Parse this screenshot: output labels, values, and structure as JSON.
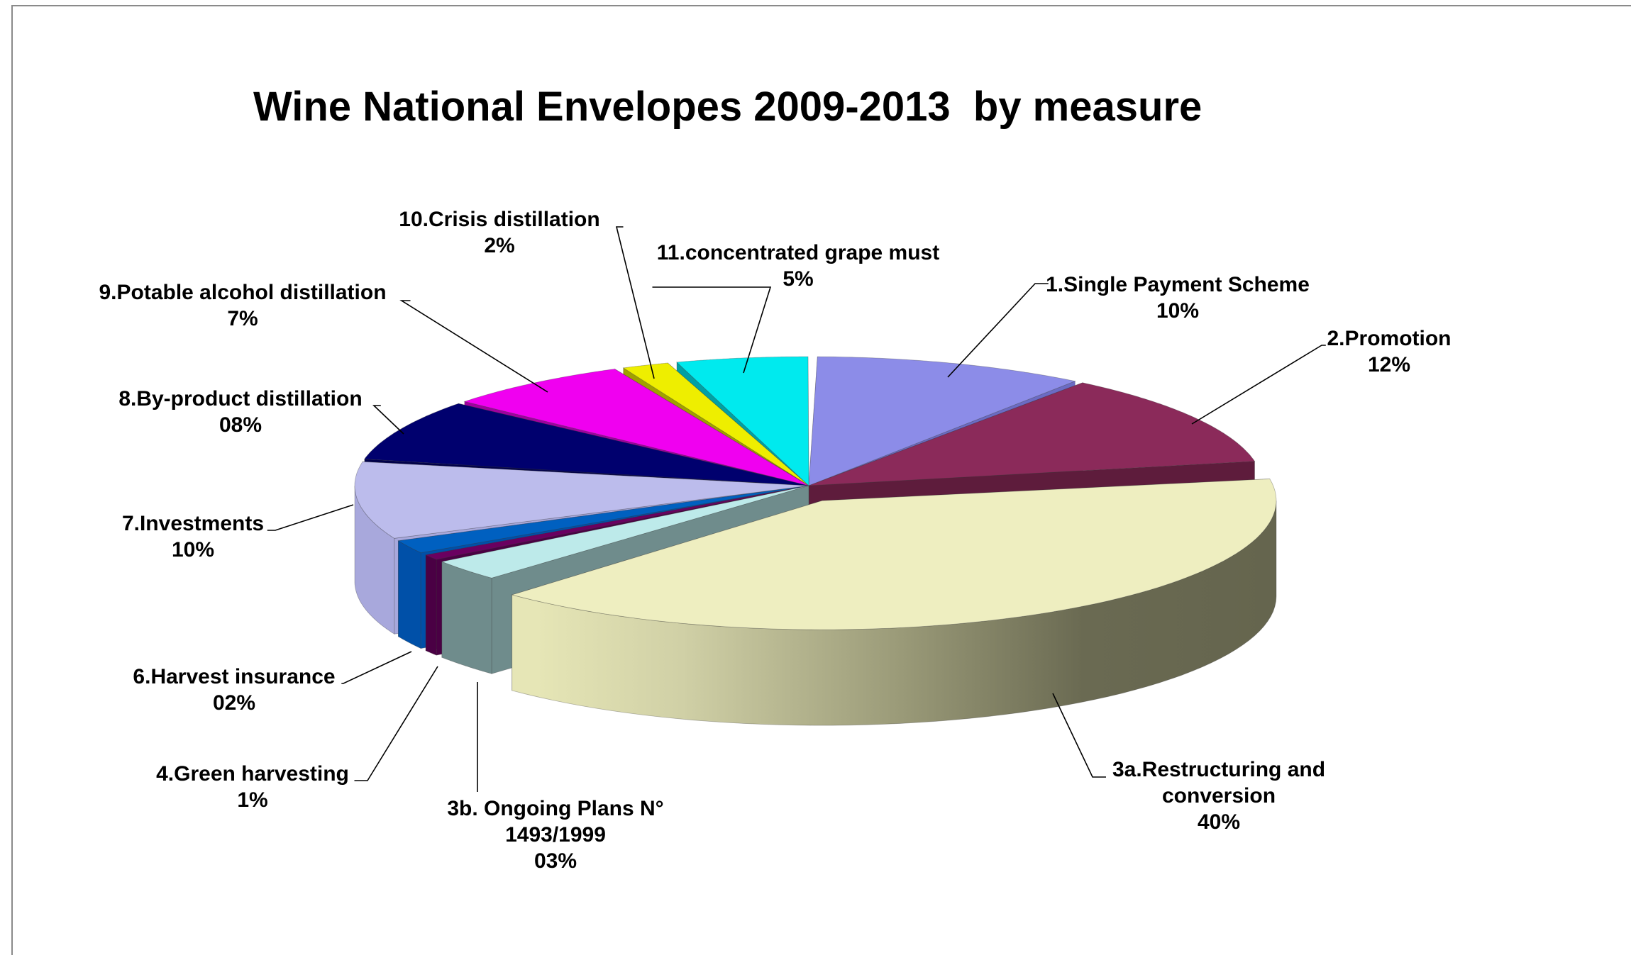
{
  "chart_data": {
    "type": "pie",
    "style": "3d-exploded",
    "title": "Wine National Envelopes 2009-2013  by measure",
    "legend": "none",
    "slices": [
      {
        "label": "1.Single Payment Scheme",
        "pct_label": "10%",
        "value": 10,
        "color": "#8c8ce8",
        "side": "#6b6bc4"
      },
      {
        "label": "2.Promotion",
        "pct_label": "12%",
        "value": 12,
        "color": "#8b2a5a",
        "side": "#5e1c3c"
      },
      {
        "label": "3a.Restructuring and conversion",
        "lines": [
          "3a.Restructuring and",
          "conversion"
        ],
        "pct_label": "40%",
        "value": 40,
        "color": "#eeeec0",
        "side": "#65654e"
      },
      {
        "label": "3b. Ongoing Plans N° 1493/1999",
        "lines": [
          "3b. Ongoing Plans N°",
          "1493/1999"
        ],
        "pct_label": "03%",
        "value": 3,
        "color": "#bdeaea",
        "side": "#6f8c8c"
      },
      {
        "label": "4.Green harvesting",
        "pct_label": "1%",
        "value": 1,
        "color": "#6a0060",
        "side": "#4a0044"
      },
      {
        "label": "6.Harvest insurance",
        "pct_label": "02%",
        "value": 2,
        "color": "#0060c0",
        "side": "#0050a8"
      },
      {
        "label": "7.Investments",
        "pct_label": "10%",
        "value": 10,
        "color": "#bcbcec",
        "side": "#a8a8dc"
      },
      {
        "label": "8.By-product distillation",
        "pct_label": "08%",
        "value": 8,
        "color": "#00006e",
        "side": "#00004a"
      },
      {
        "label": "9.Potable alcohol distillation",
        "pct_label": "7%",
        "value": 7,
        "color": "#f000f0",
        "side": "#a000a0"
      },
      {
        "label": "10.Crisis distillation",
        "pct_label": "2%",
        "value": 2,
        "color": "#eeee00",
        "side": "#a0a000"
      },
      {
        "label": "11.concentrated grape must",
        "pct_label": "5%",
        "value": 5,
        "color": "#00eaee",
        "side": "#00a0a4"
      }
    ]
  }
}
